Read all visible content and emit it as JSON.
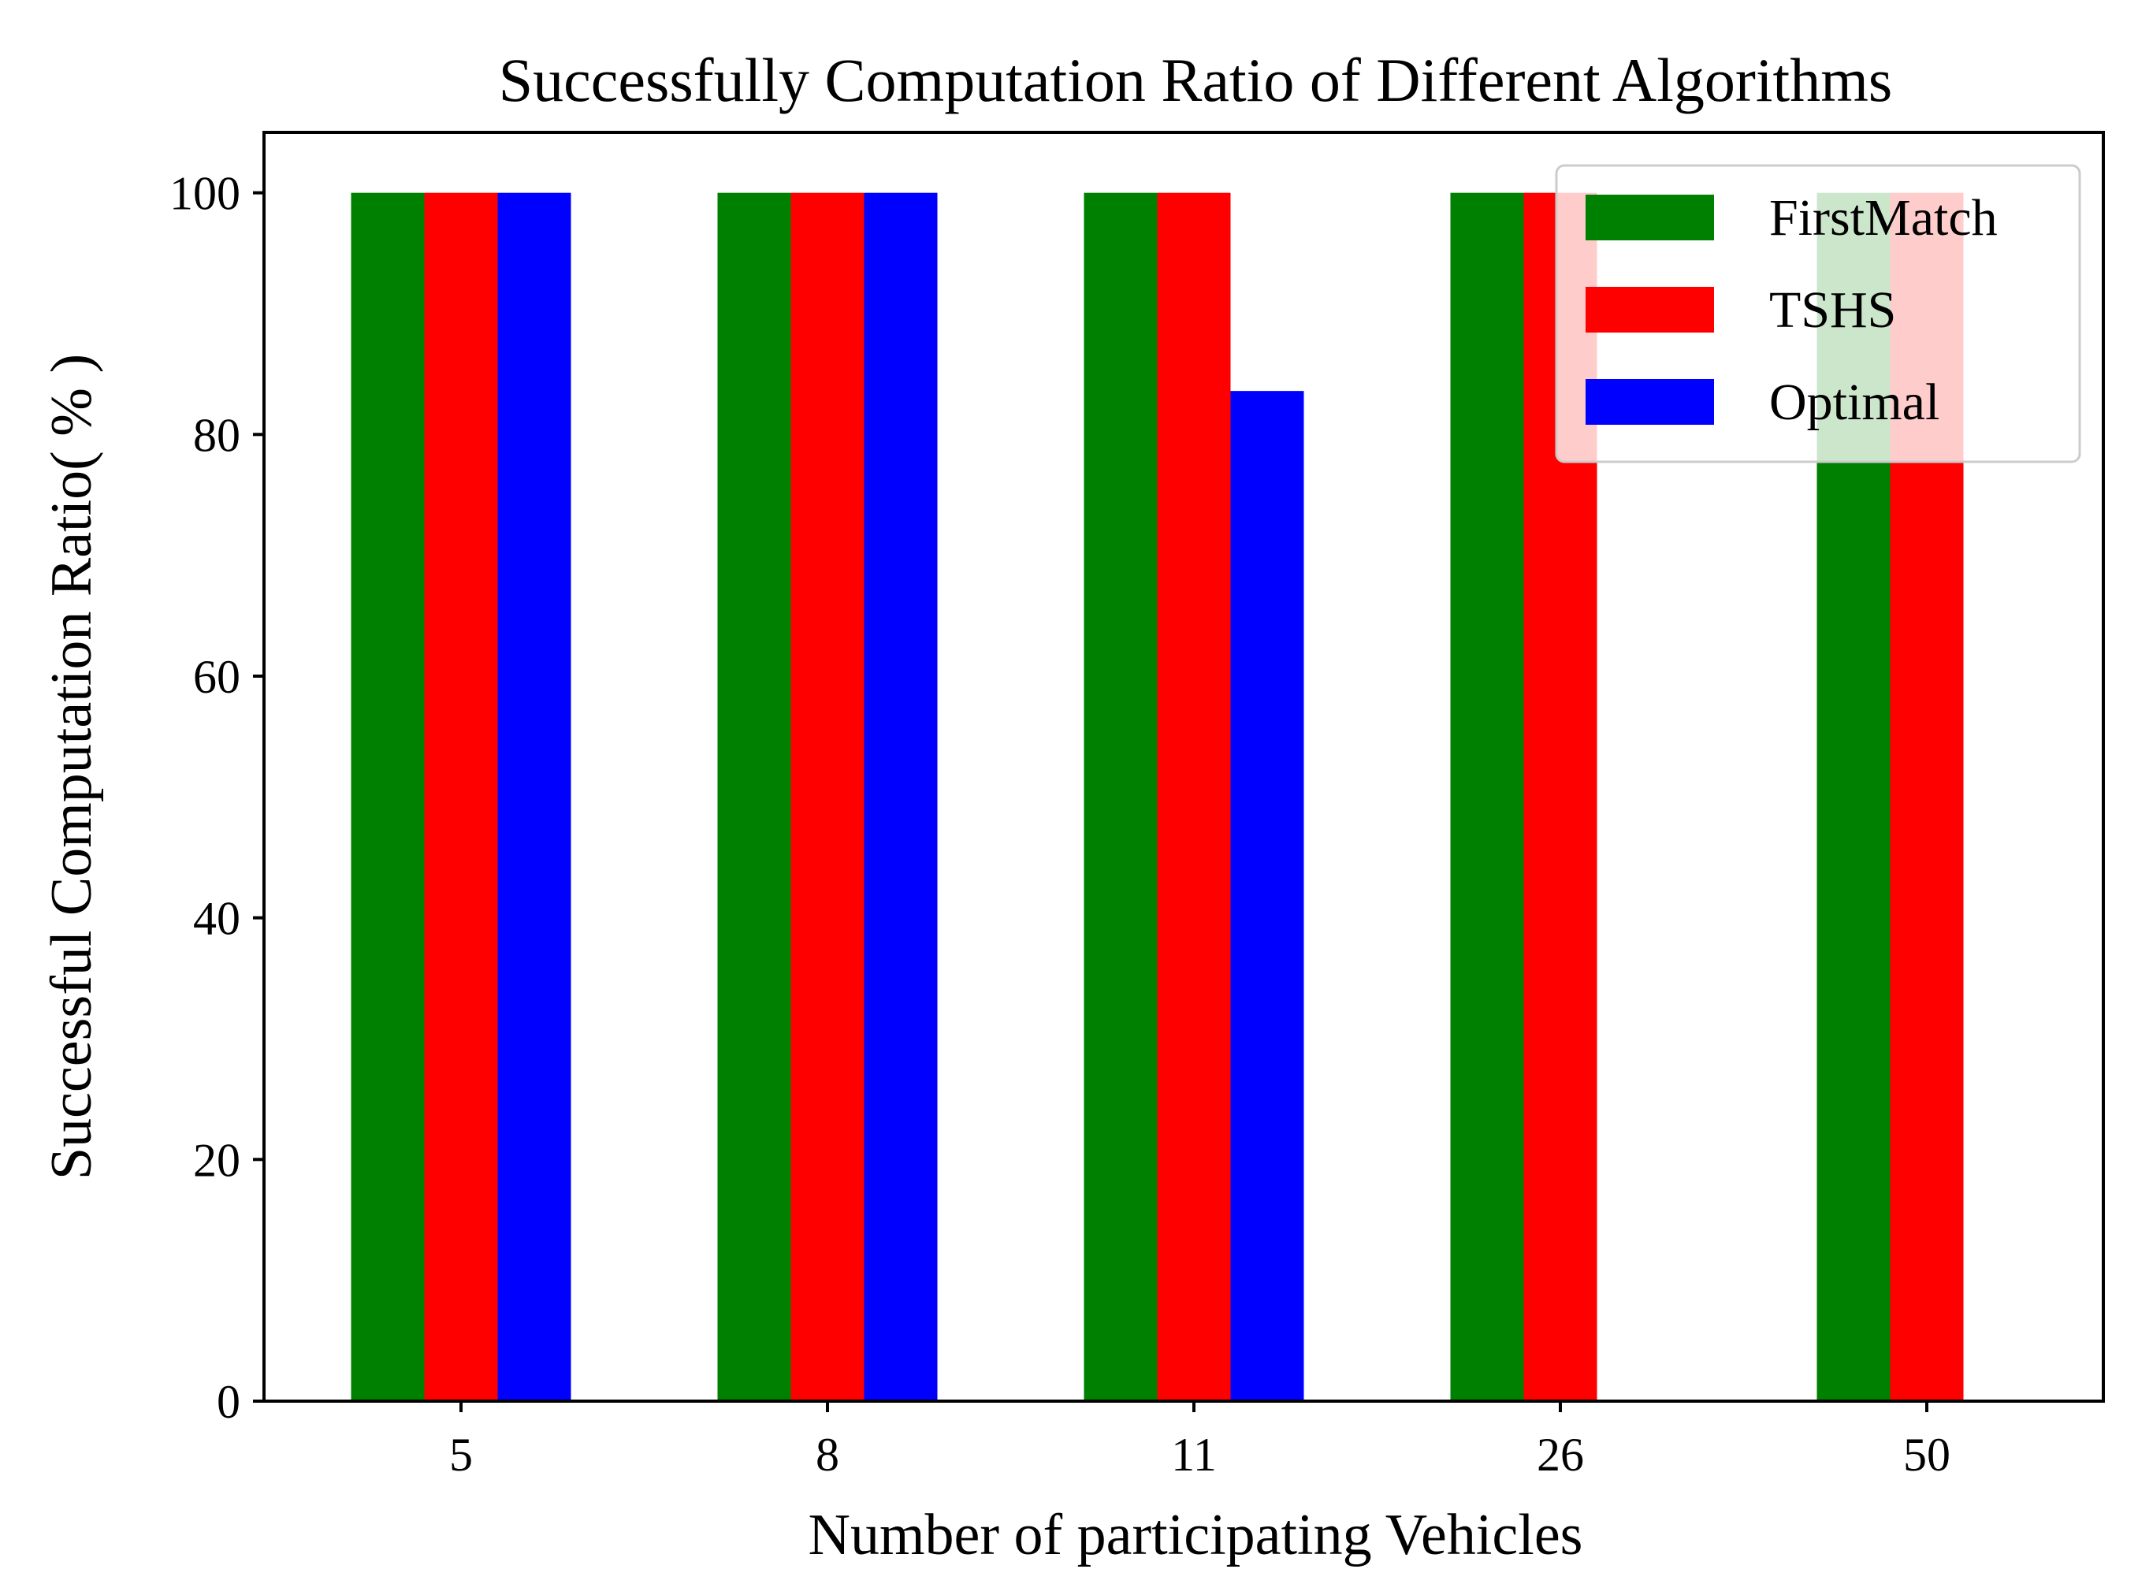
{
  "chart_data": {
    "type": "bar",
    "title": "Successfully Computation Ratio of Different Algorithms",
    "xlabel": "Number of participating Vehicles",
    "ylabel": "Successful Computation Ratio( % )",
    "categories": [
      "5",
      "8",
      "11",
      "26",
      "50"
    ],
    "series": [
      {
        "name": "FirstMatch",
        "color": "#008000",
        "values": [
          100,
          100,
          100,
          100,
          100
        ]
      },
      {
        "name": "TSHS",
        "color": "#ff0000",
        "values": [
          100,
          100,
          100,
          100,
          100
        ]
      },
      {
        "name": "Optimal",
        "color": "#0000ff",
        "values": [
          100,
          100,
          83.6,
          null,
          null
        ]
      }
    ],
    "ylim": [
      0,
      105
    ],
    "yticks": [
      0,
      20,
      40,
      60,
      80,
      100
    ],
    "grid": false,
    "legend_position": "top-right"
  }
}
